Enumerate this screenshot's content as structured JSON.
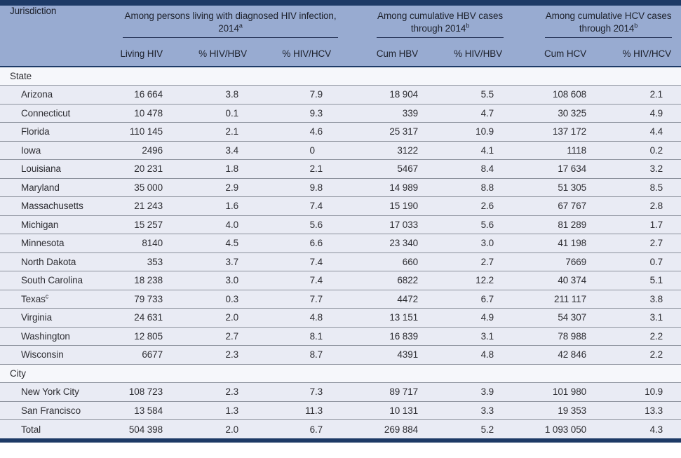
{
  "colors": {
    "navy": "#1d3a66",
    "blue": "#98abd1",
    "fill": "#e9ebf4",
    "section-fill": "#f6f7fb",
    "sep": "#8d929d"
  },
  "table": {
    "jurisdiction_label": "Jurisdiction",
    "groups": [
      {
        "line1": "Among persons living with diagnosed HIV infection,",
        "line2": "2014",
        "sup": "a"
      },
      {
        "line1": "Among cumulative HBV cases",
        "line2": "through 2014",
        "sup": "b"
      },
      {
        "line1": "Among cumulative HCV cases",
        "line2": "through 2014",
        "sup": "b"
      }
    ],
    "columns": [
      "Living HIV",
      "% HIV/HBV",
      "% HIV/HCV",
      "Cum HBV",
      "% HIV/HBV",
      "Cum HCV",
      "% HIV/HCV"
    ],
    "rows": [
      {
        "type": "section",
        "name": "State",
        "values": [
          "",
          "",
          "",
          "",
          "",
          "",
          ""
        ]
      },
      {
        "type": "data",
        "name": "Arizona",
        "values": [
          "16 664",
          "3.8",
          "7.9",
          "18 904",
          "5.5",
          "108 608",
          "2.1"
        ]
      },
      {
        "type": "data",
        "name": "Connecticut",
        "values": [
          "10 478",
          "0.1",
          "9.3",
          "339",
          "4.7",
          "30 325",
          "4.9"
        ]
      },
      {
        "type": "data",
        "name": "Florida",
        "values": [
          "110 145",
          "2.1",
          "4.6",
          "25 317",
          "10.9",
          "137 172",
          "4.4"
        ]
      },
      {
        "type": "data",
        "name": "Iowa",
        "values": [
          "2496",
          "3.4",
          "0",
          "3122",
          "4.1",
          "1118",
          "0.2"
        ]
      },
      {
        "type": "data",
        "name": "Louisiana",
        "values": [
          "20 231",
          "1.8",
          "2.1",
          "5467",
          "8.4",
          "17 634",
          "3.2"
        ]
      },
      {
        "type": "data",
        "name": "Maryland",
        "values": [
          "35 000",
          "2.9",
          "9.8",
          "14 989",
          "8.8",
          "51 305",
          "8.5"
        ]
      },
      {
        "type": "data",
        "name": "Massachusetts",
        "values": [
          "21 243",
          "1.6",
          "7.4",
          "15 190",
          "2.6",
          "67 767",
          "2.8"
        ]
      },
      {
        "type": "data",
        "name": "Michigan",
        "values": [
          "15 257",
          "4.0",
          "5.6",
          "17 033",
          "5.6",
          "81 289",
          "1.7"
        ]
      },
      {
        "type": "data",
        "name": "Minnesota",
        "values": [
          "8140",
          "4.5",
          "6.6",
          "23 340",
          "3.0",
          "41 198",
          "2.7"
        ]
      },
      {
        "type": "data",
        "name": "North Dakota",
        "values": [
          "353",
          "3.7",
          "7.4",
          "660",
          "2.7",
          "7669",
          "0.7"
        ]
      },
      {
        "type": "data",
        "name": "South Carolina",
        "values": [
          "18 238",
          "3.0",
          "7.4",
          "6822",
          "12.2",
          "40 374",
          "5.1"
        ]
      },
      {
        "type": "data",
        "name": "Texas",
        "sup": "c",
        "values": [
          "79 733",
          "0.3",
          "7.7",
          "4472",
          "6.7",
          "211 117",
          "3.8"
        ]
      },
      {
        "type": "data",
        "name": "Virginia",
        "values": [
          "24 631",
          "2.0",
          "4.8",
          "13 151",
          "4.9",
          "54 307",
          "3.1"
        ]
      },
      {
        "type": "data",
        "name": "Washington",
        "values": [
          "12 805",
          "2.7",
          "8.1",
          "16 839",
          "3.1",
          "78 988",
          "2.2"
        ]
      },
      {
        "type": "data",
        "name": "Wisconsin",
        "values": [
          "6677",
          "2.3",
          "8.7",
          "4391",
          "4.8",
          "42 846",
          "2.2"
        ]
      },
      {
        "type": "section",
        "name": "City",
        "values": [
          "",
          "",
          "",
          "",
          "",
          "",
          ""
        ]
      },
      {
        "type": "data",
        "name": "New York City",
        "values": [
          "108 723",
          "2.3",
          "7.3",
          "89 717",
          "3.9",
          "101 980",
          "10.9"
        ]
      },
      {
        "type": "data",
        "name": "San Francisco",
        "values": [
          "13 584",
          "1.3",
          "11.3",
          "10 131",
          "3.3",
          "19 353",
          "13.3"
        ]
      },
      {
        "type": "total",
        "name": "Total",
        "values": [
          "504 398",
          "2.0",
          "6.7",
          "269 884",
          "5.2",
          "1 093 050",
          "4.3"
        ]
      }
    ]
  }
}
